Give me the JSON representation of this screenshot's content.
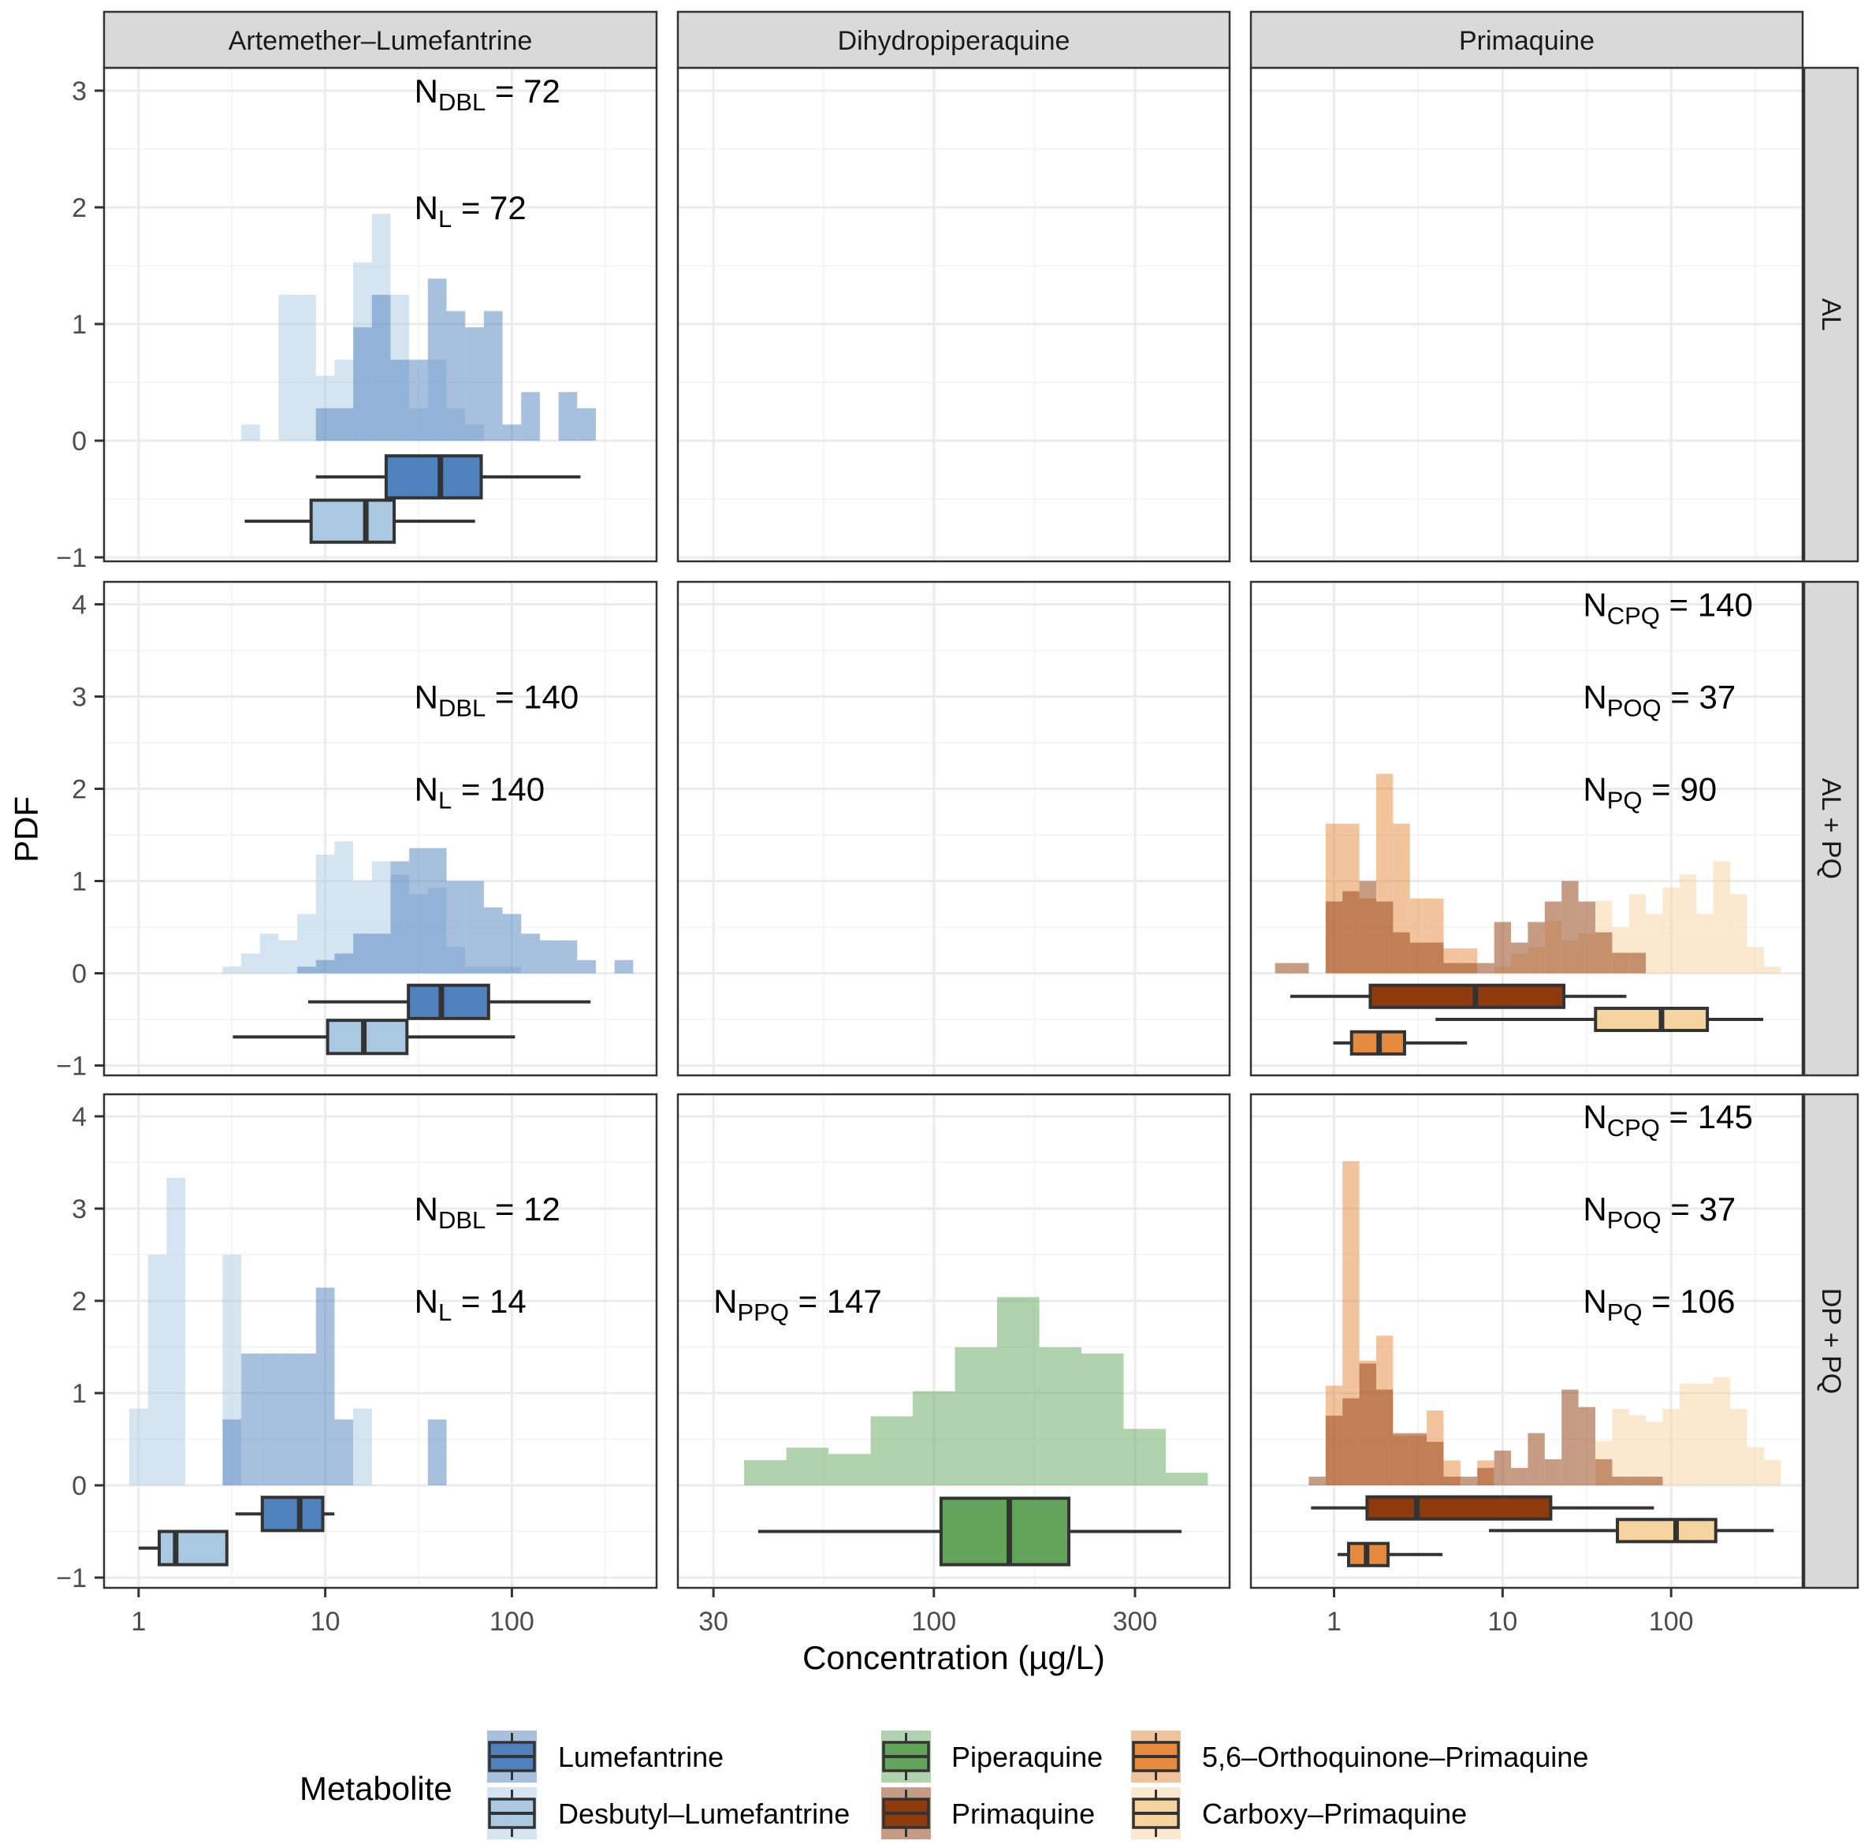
{
  "chart_data": {
    "type": "histogram",
    "overlay": "boxplot",
    "title": "",
    "xlabel": "Concentration (µg/L)",
    "ylabel": "PDF",
    "x_scale": "log10",
    "grid": true,
    "legend_position": "bottom",
    "facet_columns": [
      "Artemether–Lumefantrine",
      "Dihydropiperaquine",
      "Primaquine"
    ],
    "facet_rows": [
      "AL",
      "AL + PQ",
      "DP + PQ"
    ],
    "columns": [
      {
        "xlim": [
          0.653,
          596
        ],
        "x_ticks": [
          1,
          10,
          100
        ],
        "x_tick_labels": [
          "1",
          "10",
          "100"
        ]
      },
      {
        "xlim": [
          24.7,
          503
        ],
        "x_ticks": [
          30,
          100,
          300
        ],
        "x_tick_labels": [
          "30",
          "100",
          "300"
        ]
      },
      {
        "xlim": [
          0.321,
          603
        ],
        "x_ticks": [
          1,
          10,
          100
        ],
        "x_tick_labels": [
          "1",
          "10",
          "100"
        ]
      }
    ],
    "rows": [
      {
        "ylim": [
          -1.034,
          3.196
        ],
        "y_ticks": [
          -1,
          0,
          1,
          2,
          3
        ],
        "y_tick_labels": [
          "−1",
          "0",
          "1",
          "2",
          "3"
        ]
      },
      {
        "ylim": [
          -1.107,
          4.244
        ],
        "y_ticks": [
          -1,
          0,
          1,
          2,
          3,
          4
        ],
        "y_tick_labels": [
          "−1",
          "0",
          "1",
          "2",
          "3",
          "4"
        ]
      },
      {
        "ylim": [
          -1.111,
          4.239
        ],
        "y_ticks": [
          -1,
          0,
          1,
          2,
          3,
          4
        ],
        "y_tick_labels": [
          "−1",
          "0",
          "1",
          "2",
          "3",
          "4"
        ]
      }
    ],
    "metabolites": [
      {
        "name": "Lumefantrine",
        "color": "#4f81bd"
      },
      {
        "name": "Desbutyl–Lumefantrine",
        "color": "#a9c9e1"
      },
      {
        "name": "Piperaquine",
        "color": "#62a55a"
      },
      {
        "name": "Primaquine",
        "color": "#8f3a0c"
      },
      {
        "name": "5,6–Orthoquinone–Primaquine",
        "color": "#e68a3e"
      },
      {
        "name": "Carboxy–Primaquine",
        "color": "#f5d39e"
      }
    ],
    "legend_title": "Metabolite",
    "panels": [
      {
        "row": 0,
        "col": 0,
        "histograms": [
          {
            "metabolite": 1,
            "bin_start_log10": 0.55,
            "binwidth_log10": 0.1,
            "pdf": [
              0.139,
              0,
              1.25,
              1.25,
              0.556,
              0.694,
              1.528,
              1.944,
              1.25,
              0.278,
              0.694,
              0.278,
              0.139
            ]
          },
          {
            "metabolite": 0,
            "bin_start_log10": 0.95,
            "binwidth_log10": 0.1,
            "pdf": [
              0.278,
              0.278,
              0.972,
              1.25,
              0.694,
              0.694,
              1.389,
              1.111,
              0.972,
              1.111,
              0.139,
              0.417,
              0,
              0.417,
              0.278
            ]
          }
        ],
        "boxplots": [
          {
            "metabolite": 0,
            "y": -0.31,
            "whisker_low": 8.9,
            "q1": 21.2,
            "median": 41.4,
            "q3": 68.5,
            "whisker_high": 233
          },
          {
            "metabolite": 1,
            "y": -0.69,
            "whisker_low": 3.7,
            "q1": 8.4,
            "median": 16.5,
            "q3": 23.4,
            "whisker_high": 63.5
          }
        ],
        "labels": [
          {
            "n": "N",
            "sub": "DBL",
            "eq": " = 72",
            "x": 30,
            "y": 3
          },
          {
            "n": "N",
            "sub": "L",
            "eq": " = 72",
            "x": 30,
            "y": 2
          }
        ]
      },
      {
        "row": 0,
        "col": 1,
        "histograms": [],
        "boxplots": [],
        "labels": []
      },
      {
        "row": 0,
        "col": 2,
        "histograms": [],
        "boxplots": [],
        "labels": []
      },
      {
        "row": 1,
        "col": 0,
        "histograms": [
          {
            "metabolite": 1,
            "bin_start_log10": 0.45,
            "binwidth_log10": 0.1,
            "pdf": [
              0.071,
              0.214,
              0.429,
              0.357,
              0.643,
              1.286,
              1.429,
              1.0,
              1.214,
              1.071,
              0.857,
              0.929,
              0.286,
              0.071,
              0.071,
              0.071
            ]
          },
          {
            "metabolite": 0,
            "bin_start_log10": 0.85,
            "binwidth_log10": 0.1,
            "pdf": [
              0.071,
              0.143,
              0.214,
              0.429,
              0.429,
              1.214,
              1.357,
              1.357,
              1.0,
              1.0,
              0.714,
              0.643,
              0.429,
              0.357,
              0.357,
              0.143,
              0,
              0.143
            ]
          }
        ],
        "boxplots": [
          {
            "metabolite": 0,
            "y": -0.31,
            "whisker_low": 8.1,
            "q1": 27.9,
            "median": 41.9,
            "q3": 75.0,
            "whisker_high": 264
          },
          {
            "metabolite": 1,
            "y": -0.69,
            "whisker_low": 3.2,
            "q1": 10.3,
            "median": 16.1,
            "q3": 27.4,
            "whisker_high": 104
          }
        ],
        "labels": [
          {
            "n": "N",
            "sub": "DBL",
            "eq": " = 140",
            "x": 30,
            "y": 3
          },
          {
            "n": "N",
            "sub": "L",
            "eq": " = 140",
            "x": 30,
            "y": 2
          }
        ]
      },
      {
        "row": 1,
        "col": 1,
        "histograms": [],
        "boxplots": [],
        "labels": []
      },
      {
        "row": 1,
        "col": 2,
        "histograms": [
          {
            "metabolite": 5,
            "bin_start_log10": 0.95,
            "binwidth_log10": 0.1,
            "pdf": [
              0.071,
              0.214,
              0.286,
              0.571,
              0.357,
              0.429,
              0.786,
              0.5,
              0.857,
              0.643,
              0.929,
              1.071,
              0.643,
              1.214,
              0.857,
              0.286,
              0.071
            ]
          },
          {
            "metabolite": 4,
            "bin_start_log10": -0.05,
            "binwidth_log10": 0.1,
            "pdf": [
              1.622,
              1.622,
              0.811,
              2.162,
              1.622,
              0.811,
              0.811,
              0.27,
              0.27
            ]
          },
          {
            "metabolite": 3,
            "bin_start_log10": -0.35,
            "binwidth_log10": 0.1,
            "pdf": [
              0.111,
              0.111,
              0,
              0.778,
              0.889,
              1.0,
              0.778,
              0.444,
              0.333,
              0.333,
              0.111,
              0.111,
              0.111,
              0.556,
              0.333,
              0.556,
              0.778,
              1.0,
              0.778,
              0.444,
              0.222,
              0.222
            ]
          }
        ],
        "boxplots": [
          {
            "metabolite": 3,
            "y": -0.25,
            "whisker_low": 0.55,
            "q1": 1.64,
            "median": 6.9,
            "q3": 23.1,
            "whisker_high": 54.3
          },
          {
            "metabolite": 5,
            "y": -0.5,
            "whisker_low": 4.0,
            "q1": 35.6,
            "median": 87.7,
            "q3": 164,
            "whisker_high": 352
          },
          {
            "metabolite": 4,
            "y": -0.755,
            "whisker_low": 0.99,
            "q1": 1.27,
            "median": 1.85,
            "q3": 2.62,
            "whisker_high": 6.15
          }
        ],
        "labels": [
          {
            "n": "N",
            "sub": "CPQ",
            "eq": " = 140",
            "x": 30,
            "y": 4
          },
          {
            "n": "N",
            "sub": "POQ",
            "eq": " = 37",
            "x": 30,
            "y": 3
          },
          {
            "n": "N",
            "sub": "PQ",
            "eq": " = 90",
            "x": 30,
            "y": 2
          }
        ]
      },
      {
        "row": 2,
        "col": 0,
        "histograms": [
          {
            "metabolite": 1,
            "bin_start_log10": -0.05,
            "binwidth_log10": 0.1,
            "pdf": [
              0.833,
              2.5,
              3.333,
              0,
              0,
              2.5,
              0,
              0,
              0,
              0,
              0,
              0,
              0.833
            ]
          },
          {
            "metabolite": 0,
            "bin_start_log10": 0.45,
            "binwidth_log10": 0.1,
            "pdf": [
              0.714,
              1.429,
              1.429,
              1.429,
              1.429,
              2.143,
              0.714,
              0,
              0,
              0,
              0,
              0.714
            ]
          }
        ],
        "boxplots": [
          {
            "metabolite": 0,
            "y": -0.31,
            "whisker_low": 3.3,
            "q1": 4.6,
            "median": 7.3,
            "q3": 9.7,
            "whisker_high": 11.2
          },
          {
            "metabolite": 1,
            "y": -0.68,
            "whisker_low": 1.0,
            "q1": 1.29,
            "median": 1.58,
            "q3": 2.97,
            "whisker_high": 3.0
          }
        ],
        "labels": [
          {
            "n": "N",
            "sub": "DBL",
            "eq": " = 12",
            "x": 30,
            "y": 3
          },
          {
            "n": "N",
            "sub": "L",
            "eq": " = 14",
            "x": 30,
            "y": 2
          }
        ]
      },
      {
        "row": 2,
        "col": 1,
        "histograms": [
          {
            "metabolite": 2,
            "bin_start_log10": 1.55,
            "binwidth_log10": 0.1,
            "pdf": [
              0.272,
              0.408,
              0.34,
              0.748,
              1.02,
              1.497,
              2.041,
              1.497,
              1.429,
              0.612,
              0.136
            ]
          }
        ],
        "boxplots": [
          {
            "metabolite": 2,
            "y": -0.5,
            "whisker_low": 38.3,
            "q1": 104,
            "median": 151,
            "q3": 209,
            "whisker_high": 387
          }
        ],
        "labels": [
          {
            "n": "N",
            "sub": "PPQ",
            "eq": " = 147",
            "x": 30,
            "y": 2
          }
        ]
      },
      {
        "row": 2,
        "col": 2,
        "histograms": [
          {
            "metabolite": 5,
            "bin_start_log10": 1.55,
            "binwidth_log10": 0.1,
            "pdf": [
              0.483,
              0.828,
              0.759,
              0.69,
              0.828,
              1.103,
              1.103,
              1.172,
              0.828,
              0.414,
              0.276
            ]
          },
          {
            "metabolite": 4,
            "bin_start_log10": -0.05,
            "binwidth_log10": 0.1,
            "pdf": [
              1.081,
              3.514,
              1.351,
              1.622,
              0.541,
              0.541,
              0.811,
              0.27,
              0,
              0.27
            ]
          },
          {
            "metabolite": 3,
            "bin_start_log10": -0.15,
            "binwidth_log10": 0.1,
            "pdf": [
              0.094,
              0.755,
              0.943,
              1.321,
              1.038,
              0.566,
              0.566,
              0.472,
              0.094,
              0.094,
              0.189,
              0.377,
              0.189,
              0.566,
              0.283,
              1.038,
              0.849,
              0.283,
              0.094,
              0.094,
              0.094
            ]
          }
        ],
        "boxplots": [
          {
            "metabolite": 3,
            "y": -0.245,
            "whisker_low": 0.73,
            "q1": 1.57,
            "median": 3.1,
            "q3": 19.3,
            "whisker_high": 79.1
          },
          {
            "metabolite": 5,
            "y": -0.49,
            "whisker_low": 8.3,
            "q1": 48,
            "median": 107,
            "q3": 184,
            "whisker_high": 406
          },
          {
            "metabolite": 4,
            "y": -0.75,
            "whisker_low": 1.05,
            "q1": 1.22,
            "median": 1.56,
            "q3": 2.09,
            "whisker_high": 4.4
          }
        ],
        "labels": [
          {
            "n": "N",
            "sub": "CPQ",
            "eq": " = 145",
            "x": 30,
            "y": 4
          },
          {
            "n": "N",
            "sub": "POQ",
            "eq": " = 37",
            "x": 30,
            "y": 3
          },
          {
            "n": "N",
            "sub": "PQ",
            "eq": " = 106",
            "x": 30,
            "y": 2
          }
        ]
      }
    ]
  }
}
